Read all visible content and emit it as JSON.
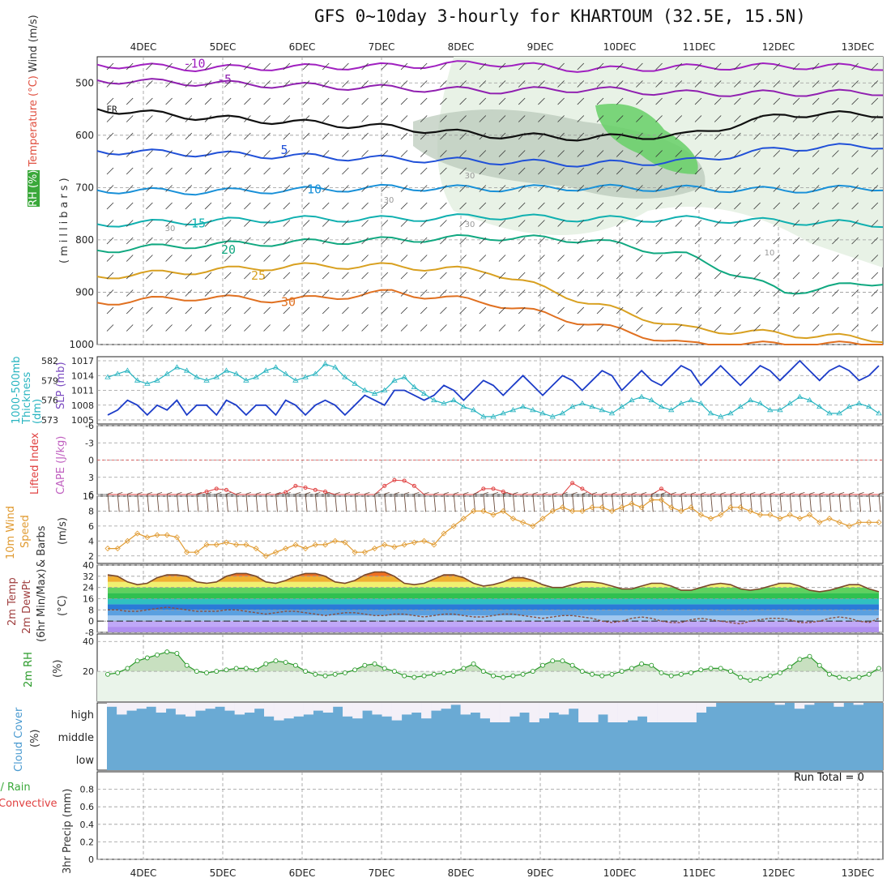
{
  "title": "GFS 0~10day 3-hourly for KHARTOUM (32.5E, 15.5N)",
  "colors": {
    "grid": "#9a9a9a",
    "temp_line": "#7a4a2a",
    "dew_line": "#8a5040",
    "slp": "#1c3cc8",
    "thickness": "#28b4c0",
    "wind_speed": "#e09a30",
    "barb": "#6a4a3a",
    "rh2m": "#2a9a2a",
    "rh2m_fill": "#c8e0c0",
    "cloud": "#6aaad4",
    "lifted": "#e04040"
  },
  "chart_data": {
    "type": "line",
    "x_axis": {
      "labels": [
        "4DEC",
        "5DEC",
        "6DEC",
        "7DEC",
        "8DEC",
        "9DEC",
        "10DEC",
        "11DEC",
        "12DEC",
        "13DEC"
      ],
      "ticks_per_day": 8,
      "days_shown": 9.75
    },
    "upper_air": {
      "ylabel_parts": [
        "Wind (m/s)",
        "Temperature (°C)",
        "RH (%)"
      ],
      "ylabel2": "(millibars)",
      "y_ticks": [
        "500",
        "600",
        "700",
        "800",
        "900",
        "1000"
      ],
      "ylim": [
        450,
        1000
      ],
      "isotherms": [
        {
          "label": "-10",
          "color": "#a020c0",
          "p": [
            465,
            472,
            470,
            468,
            462,
            475,
            470,
            468,
            470
          ]
        },
        {
          "label": "-5",
          "color": "#9020b0",
          "p": [
            495,
            500,
            505,
            510,
            515,
            512,
            520,
            520,
            518
          ]
        },
        {
          "label": "FR",
          "color": "#101010",
          "p": [
            550,
            565,
            575,
            585,
            600,
            605,
            600,
            560,
            560
          ]
        },
        {
          "label": "5",
          "color": "#2050d8",
          "p": [
            630,
            635,
            640,
            645,
            650,
            655,
            650,
            625,
            620
          ]
        },
        {
          "label": "10",
          "color": "#1890d8",
          "p": [
            705,
            708,
            705,
            700,
            702,
            700,
            702,
            705,
            700
          ]
        },
        {
          "label": "15",
          "color": "#10b0b0",
          "p": [
            770,
            765,
            760,
            760,
            755,
            760,
            760,
            765,
            770
          ]
        },
        {
          "label": "20",
          "color": "#10a880",
          "p": [
            820,
            810,
            805,
            800,
            795,
            800,
            830,
            900,
            880
          ]
        },
        {
          "label": "25",
          "color": "#d8a020",
          "p": [
            870,
            860,
            850,
            850,
            860,
            920,
            970,
            980,
            990
          ]
        },
        {
          "label": "30",
          "color": "#e07020",
          "p": [
            920,
            910,
            915,
            900,
            920,
            960,
            1000,
            1000,
            1000
          ]
        }
      ],
      "rh_labels": [
        "30",
        "30",
        "30",
        "30",
        "10"
      ]
    },
    "slp_thickness": {
      "ylabel_left": "1000-500mb Thickness (dm)",
      "ylabel_right": "SLP (mb)",
      "thickness_ticks": [
        "582",
        "579",
        "576",
        "573"
      ],
      "slp_ticks": [
        "1017",
        "1014",
        "1011",
        "1008",
        "1005"
      ],
      "slp": [
        1006,
        1007,
        1009,
        1008,
        1006,
        1008,
        1007,
        1009,
        1006,
        1008,
        1008,
        1006,
        1009,
        1008,
        1006,
        1008,
        1008,
        1006,
        1009,
        1008,
        1006,
        1008,
        1009,
        1008,
        1006,
        1008,
        1010,
        1009,
        1008,
        1011,
        1011,
        1010,
        1009,
        1010,
        1012,
        1011,
        1009,
        1011,
        1013,
        1012,
        1010,
        1012,
        1014,
        1012,
        1010,
        1012,
        1014,
        1013,
        1011,
        1013,
        1015,
        1014,
        1011,
        1013,
        1015,
        1013,
        1012,
        1014,
        1016,
        1015,
        1012,
        1014,
        1016,
        1014,
        1012,
        1014,
        1016,
        1015,
        1013,
        1015,
        1017,
        1015,
        1013,
        1015,
        1016,
        1015,
        1013,
        1014,
        1016
      ],
      "thickness": [
        579.5,
        580,
        580.5,
        579,
        578.5,
        579,
        580,
        581,
        580.5,
        579.5,
        579,
        579.5,
        580.5,
        580,
        579,
        579.5,
        580.5,
        581,
        580,
        579,
        579.5,
        580,
        581.5,
        581,
        579.5,
        578.5,
        577.5,
        577,
        577.5,
        579,
        579.5,
        578,
        577,
        576,
        575.5,
        576,
        575,
        574.5,
        573.5,
        573.5,
        574,
        574.5,
        575,
        574.5,
        574,
        573.5,
        574,
        575,
        575.5,
        575,
        574.5,
        574,
        575,
        576,
        576.5,
        576,
        575,
        574.5,
        575.5,
        576,
        575.5,
        574,
        573.5,
        574,
        575,
        576,
        575.5,
        574.5,
        574.5,
        575.5,
        576.5,
        576,
        575,
        574,
        574,
        575,
        575.5,
        575,
        574
      ]
    },
    "instability": {
      "ylabel_left": "Lifted Index",
      "ylabel_right": "CAPE (J/kg)",
      "y_ticks": [
        "-6",
        "-3",
        "0",
        "3",
        "6"
      ],
      "lifted_index": [
        6,
        6,
        6,
        6,
        6,
        6,
        6,
        6,
        6,
        6,
        5.5,
        5,
        5.2,
        6,
        6,
        6,
        6,
        6,
        5.6,
        4.5,
        4.8,
        5.2,
        5.5,
        6,
        6,
        6,
        6,
        6,
        4.5,
        3.5,
        3.6,
        4.5,
        6,
        6,
        6,
        6,
        6,
        6,
        5,
        5,
        5.5,
        6,
        6,
        6,
        6,
        6,
        6,
        4,
        5,
        6,
        6,
        6,
        6,
        6,
        6,
        6,
        5,
        6,
        6,
        6,
        6,
        6,
        6,
        6,
        6,
        6,
        6,
        6,
        6,
        6,
        6,
        6,
        6,
        6,
        6,
        6,
        6,
        6,
        6
      ]
    },
    "wind10m": {
      "ylabel": [
        "10m Wind",
        "Speed",
        "& Barbs",
        "(m/s)"
      ],
      "y_ticks": [
        "2",
        "4",
        "6",
        "8",
        "10"
      ],
      "ylim": [
        1,
        10
      ],
      "speed": [
        3,
        3,
        4,
        5,
        4.5,
        4.8,
        4.8,
        4.5,
        2.5,
        2.5,
        3.5,
        3.5,
        3.8,
        3.5,
        3.5,
        3,
        2,
        2.5,
        3,
        3.5,
        3,
        3.5,
        3.5,
        4,
        3.8,
        2.5,
        2.5,
        3,
        3.5,
        3.2,
        3.5,
        3.8,
        4,
        3.5,
        5,
        6,
        7,
        8,
        8,
        7.5,
        8,
        7,
        6.5,
        6,
        7,
        8,
        8.5,
        8,
        8,
        8.5,
        8.5,
        8,
        8.5,
        9,
        8.5,
        9.5,
        9.5,
        8.5,
        8,
        8.5,
        7.5,
        7,
        7.5,
        8.5,
        8.5,
        8,
        7.5,
        7.5,
        7,
        7.5,
        7,
        7.5,
        6.5,
        7,
        6.5,
        6,
        6.5,
        6.5,
        6.5
      ]
    },
    "temp2m": {
      "ylabel": [
        "2m Temp",
        "2m DewPt",
        "(6hr Min/Max)",
        "(°C)"
      ],
      "y_ticks": [
        "40",
        "32",
        "24",
        "16",
        "8",
        "0",
        "-8"
      ],
      "ylim": [
        -8,
        40
      ],
      "temp": [
        33,
        32,
        28,
        26,
        27,
        31,
        33,
        33,
        32,
        28,
        27,
        28,
        32,
        34,
        34,
        32,
        28,
        27,
        29,
        32,
        34,
        34,
        32,
        28,
        27,
        29,
        33,
        35,
        35,
        32,
        27,
        26,
        27,
        30,
        33,
        33,
        31,
        27,
        25,
        26,
        28,
        31,
        31,
        29,
        26,
        24,
        24,
        26,
        28,
        28,
        27,
        25,
        23,
        23,
        25,
        27,
        27,
        25,
        22,
        22,
        24,
        26,
        27,
        26,
        23,
        22,
        23,
        25,
        27,
        27,
        25,
        22,
        21,
        22,
        24,
        26,
        26,
        23,
        21
      ],
      "dew": [
        8,
        8,
        7,
        7,
        8,
        9,
        10,
        9,
        8,
        7,
        7,
        7,
        8,
        8,
        7,
        6,
        5,
        6,
        7,
        7,
        6,
        5,
        4,
        5,
        6,
        6,
        5,
        4,
        4,
        5,
        5,
        4,
        3,
        4,
        5,
        5,
        4,
        3,
        3,
        4,
        5,
        5,
        4,
        3,
        2,
        3,
        4,
        4,
        3,
        2,
        0,
        -1,
        0,
        2,
        3,
        2,
        0,
        -1,
        -1,
        1,
        2,
        1,
        0,
        -1,
        -2,
        0,
        1,
        2,
        2,
        1,
        -1,
        -1,
        0,
        2,
        3,
        2,
        0,
        -1,
        2
      ]
    },
    "rh2m": {
      "ylabel": "2m RH",
      "y_unit": "(%)",
      "y_ticks": [
        "40",
        "20"
      ],
      "ylim": [
        0,
        45
      ],
      "values": [
        18,
        19,
        22,
        27,
        29,
        31,
        33,
        32,
        24,
        20,
        19,
        20,
        21,
        22,
        22,
        21,
        25,
        27,
        26,
        24,
        20,
        18,
        17,
        18,
        19,
        21,
        24,
        25,
        22,
        20,
        17,
        16,
        17,
        18,
        19,
        20,
        22,
        25,
        20,
        17,
        16,
        17,
        18,
        20,
        24,
        27,
        27,
        24,
        20,
        18,
        17,
        18,
        20,
        22,
        25,
        24,
        19,
        17,
        18,
        19,
        21,
        22,
        22,
        20,
        16,
        14,
        15,
        17,
        19,
        23,
        28,
        30,
        24,
        18,
        16,
        15,
        16,
        18,
        22
      ]
    },
    "cloud": {
      "ylabel": "Cloud Cover",
      "y_unit": "(%)",
      "levels": [
        "high",
        "middle",
        "low"
      ],
      "high": [
        0.8,
        0.4,
        0.6,
        0.7,
        0.8,
        0.5,
        0.7,
        0.4,
        0.3,
        0.6,
        0.7,
        0.8,
        0.6,
        0.4,
        0.5,
        0.7,
        0.3,
        0.1,
        0.2,
        0.3,
        0.4,
        0.6,
        0.5,
        0.8,
        0.3,
        0.2,
        0.6,
        0.4,
        0.3,
        0.1,
        0.4,
        0.5,
        0.2,
        0.6,
        0.7,
        0.9,
        0.4,
        0.5,
        0.2,
        0.0,
        0.0,
        0.3,
        0.5,
        0.0,
        0.2,
        0.5,
        0.4,
        0.7,
        0.0,
        0.0,
        0.4,
        0.0,
        0.0,
        0.1,
        0.3,
        0.0,
        0.0,
        0.0,
        0.0,
        0.0,
        0.5,
        0.8,
        1,
        1,
        1,
        1,
        1,
        1,
        0.9,
        1,
        0.7,
        0.9,
        1,
        1,
        0.8,
        1,
        0.9,
        1,
        1
      ]
    },
    "precip": {
      "ylabel_parts": [
        "Total / Rain",
        "Convective",
        "3hr Precip (mm)"
      ],
      "y_ticks": [
        "0.8",
        "0.6",
        "0.4",
        "0.2",
        "0"
      ],
      "ylim": [
        0,
        1
      ],
      "run_total_label": "Run Total = 0"
    }
  }
}
